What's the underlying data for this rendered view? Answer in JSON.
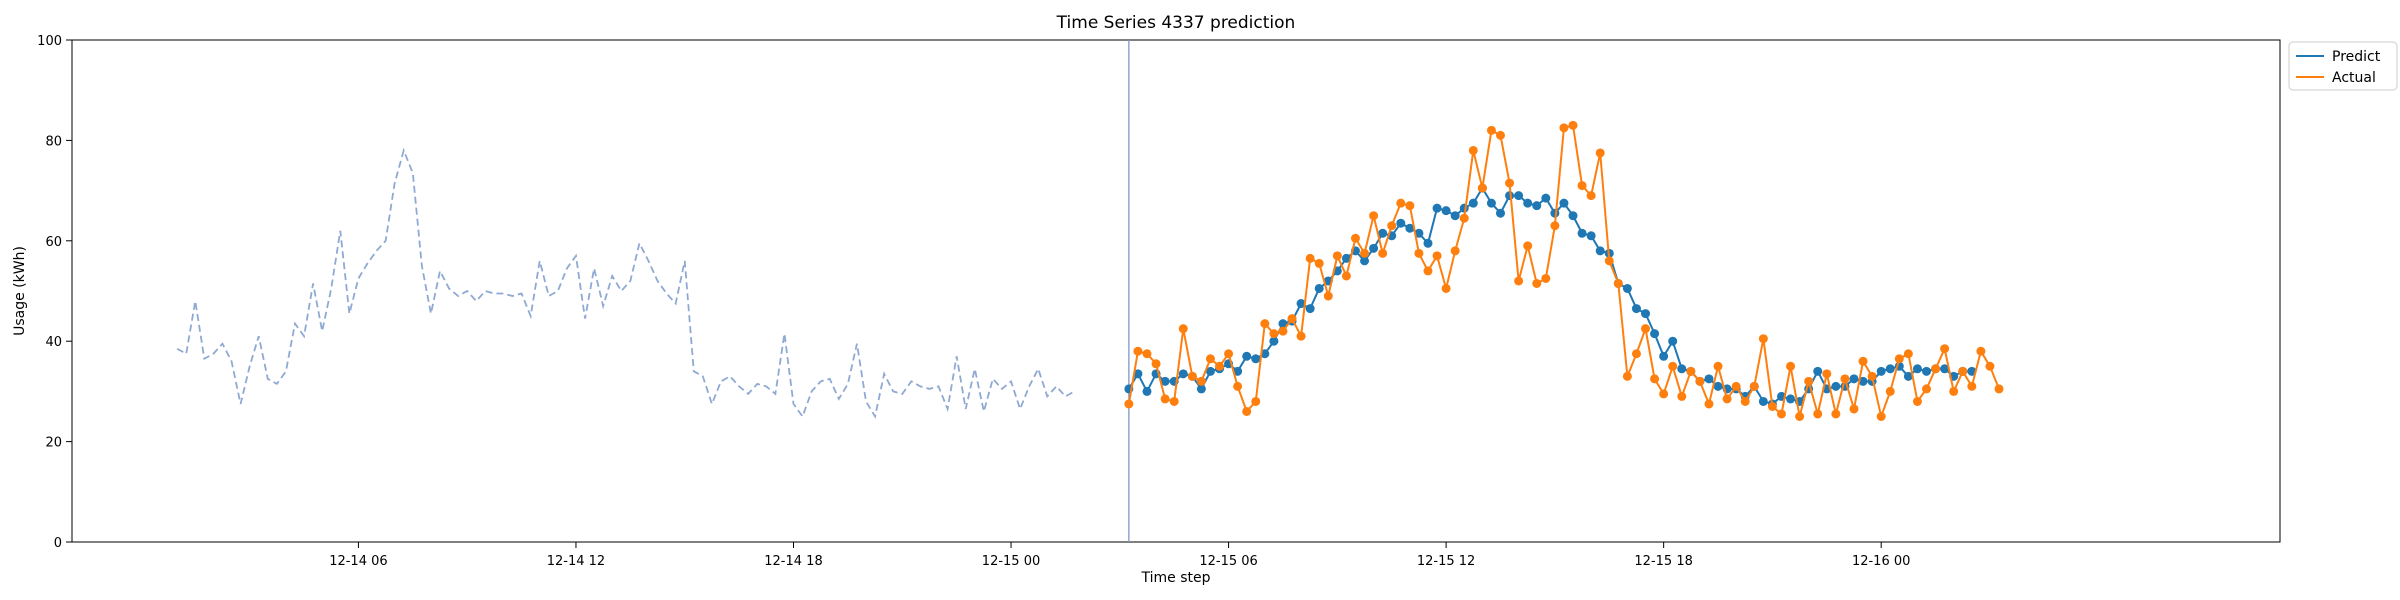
{
  "chart_data": {
    "type": "line",
    "title": "Time Series 4337 prediction",
    "xlabel": "Time step",
    "ylabel": "Usage (kWh)",
    "ylim": [
      0,
      100
    ],
    "yticks": [
      0,
      20,
      40,
      60,
      80,
      100
    ],
    "x_unit": "hours since 2020-12-14 00:00",
    "xlim": [
      -1.9,
      59.0
    ],
    "xticks": [
      {
        "x": 6,
        "label": "12-14 06"
      },
      {
        "x": 12,
        "label": "12-14 12"
      },
      {
        "x": 18,
        "label": "12-14 18"
      },
      {
        "x": 24,
        "label": "12-15 00"
      },
      {
        "x": 30,
        "label": "12-15 06"
      },
      {
        "x": 36,
        "label": "12-15 12"
      },
      {
        "x": 42,
        "label": "12-15 18"
      },
      {
        "x": 48,
        "label": "12-16 00"
      }
    ],
    "forecast_start": 27.25,
    "step": 0.25,
    "legend_position": "top-right",
    "colors": {
      "history": "#8fa9d3",
      "predict": "#1f77b4",
      "actual": "#ff7f0e",
      "divider": "#7e98c8"
    },
    "series": [
      {
        "name": "History",
        "show_in_legend": false,
        "style": "dashed",
        "x_start": 1.0,
        "values": [
          38.5,
          37.5,
          48,
          36.5,
          37.5,
          39.5,
          36.0,
          27.5,
          35,
          41,
          32.5,
          31.5,
          34,
          43.5,
          41,
          51.5,
          42,
          50.5,
          62,
          45.5,
          52.5,
          55.5,
          58,
          60,
          71.5,
          78,
          73.5,
          55,
          45.5,
          54,
          50.5,
          49,
          50,
          48,
          50,
          49.5,
          49.5,
          49,
          49.5,
          45,
          56,
          49,
          50,
          54.5,
          57,
          44.5,
          54.5,
          47,
          53,
          50,
          52,
          59.5,
          56,
          52,
          49.5,
          47.5,
          56,
          34,
          33,
          27.5,
          32,
          33,
          31,
          29.5,
          31.5,
          31,
          29.5,
          41.5,
          27.5,
          25,
          30,
          32,
          32.5,
          28.5,
          31.5,
          39.5,
          28,
          25,
          33.5,
          30,
          29.5,
          32,
          31,
          30.5,
          31,
          26.5,
          37,
          26.5,
          34.5,
          26,
          32.5,
          30.5,
          32,
          26.5,
          31,
          34.5,
          29,
          31,
          29,
          30
        ]
      },
      {
        "name": "Predict",
        "style": "solid",
        "markers": true,
        "values": [
          30.5,
          33.5,
          30,
          33.5,
          32,
          32,
          33.5,
          33,
          30.5,
          34,
          34.5,
          35.5,
          34,
          37,
          36.5,
          37.5,
          40,
          43.5,
          44,
          47.5,
          46.5,
          50.5,
          52,
          54,
          56.5,
          58,
          56,
          58.5,
          61.5,
          61,
          63.5,
          62.5,
          61.5,
          59.5,
          66.5,
          66,
          65,
          66.5,
          67.5,
          70.5,
          67.5,
          65.5,
          69,
          69,
          67.5,
          67,
          68.5,
          65.5,
          67.5,
          65,
          61.5,
          61,
          58,
          57.5,
          51.5,
          50.5,
          46.5,
          45.5,
          41.5,
          37,
          40,
          34.5,
          34,
          32,
          32.5,
          31,
          30.5,
          30.5,
          29,
          31,
          28,
          27.5,
          29,
          28.5,
          28,
          30.5,
          34,
          30.5,
          31,
          31,
          32.5,
          32,
          32,
          34,
          34.5,
          35,
          33,
          34.5,
          34,
          34.5,
          34.5,
          33,
          34,
          34
        ]
      },
      {
        "name": "Actual",
        "style": "solid",
        "markers": true,
        "values": [
          27.5,
          38,
          37.5,
          35.5,
          28.5,
          28,
          42.5,
          33,
          32,
          36.5,
          35,
          37.5,
          31,
          26,
          28,
          43.5,
          41.5,
          42,
          44.5,
          41,
          56.5,
          55.5,
          49,
          57,
          53,
          60.5,
          57.5,
          65,
          57.5,
          63,
          67.5,
          67,
          57.5,
          54,
          57,
          50.5,
          58,
          64.5,
          78,
          70.5,
          82,
          81,
          71.5,
          52,
          59,
          51.5,
          52.5,
          63,
          82.5,
          83,
          71,
          69,
          77.5,
          56,
          51.5,
          33,
          37.5,
          42.5,
          32.5,
          29.5,
          35,
          29,
          34,
          32,
          27.5,
          35,
          28.5,
          31,
          28,
          31,
          40.5,
          27,
          25.5,
          35,
          25,
          32,
          25.5,
          33.5,
          25.5,
          32.5,
          26.5,
          36,
          33,
          25,
          30,
          36.5,
          37.5,
          28,
          30.5,
          34.5,
          38.5,
          30,
          34,
          31,
          38,
          35,
          30.5
        ]
      }
    ]
  }
}
